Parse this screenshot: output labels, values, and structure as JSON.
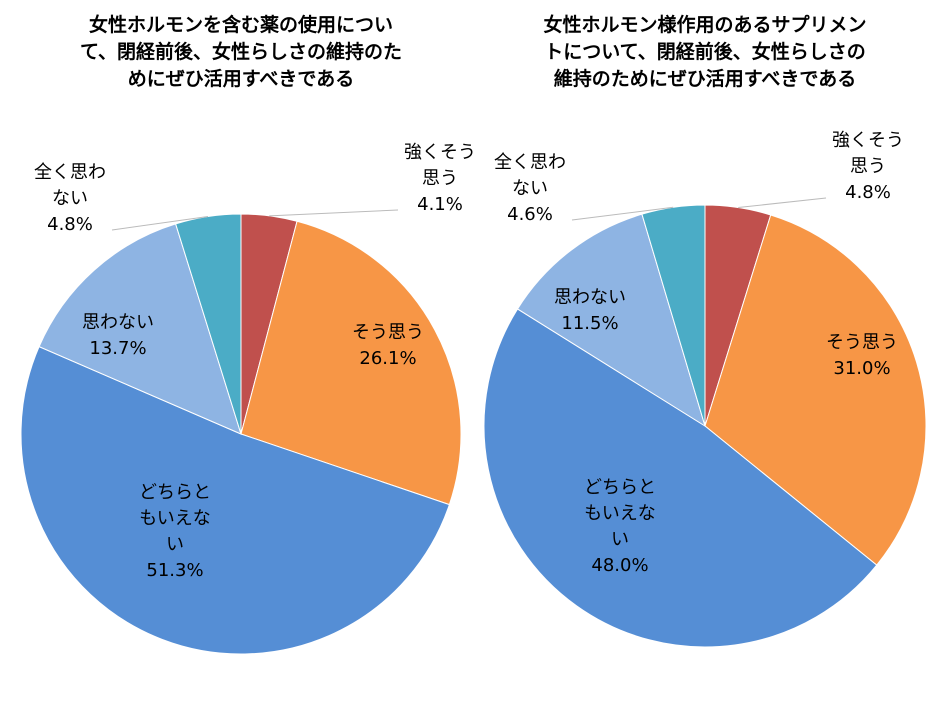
{
  "chart_data": [
    {
      "type": "pie",
      "title": "女性ホルモンを含む薬の使用について、閉経前後、女性らしさの維持のためにぜひ活用すべきである",
      "categories": [
        "強くそう思う",
        "そう思う",
        "どちらともいえない",
        "思わない",
        "全く思わない"
      ],
      "values": [
        4.1,
        26.1,
        51.3,
        13.7,
        4.8
      ],
      "value_labels": [
        "4.1%",
        "26.1%",
        "51.3%",
        "13.7%",
        "4.8%"
      ],
      "colors": [
        "#c0504d",
        "#f79646",
        "#558ed5",
        "#8eb4e3",
        "#4bacc6"
      ]
    },
    {
      "type": "pie",
      "title": "女性ホルモン様作用のあるサプリメントについて、閉経前後、女性らしさの維持のためにぜひ活用すべきである",
      "categories": [
        "強くそう思う",
        "そう思う",
        "どちらともいえない",
        "思わない",
        "全く思わない"
      ],
      "values": [
        4.8,
        31.0,
        48.0,
        11.5,
        4.6
      ],
      "value_labels": [
        "4.8%",
        "31.0%",
        "48.0%",
        "11.5%",
        "4.6%"
      ],
      "colors": [
        "#c0504d",
        "#f79646",
        "#558ed5",
        "#8eb4e3",
        "#4bacc6"
      ]
    }
  ]
}
